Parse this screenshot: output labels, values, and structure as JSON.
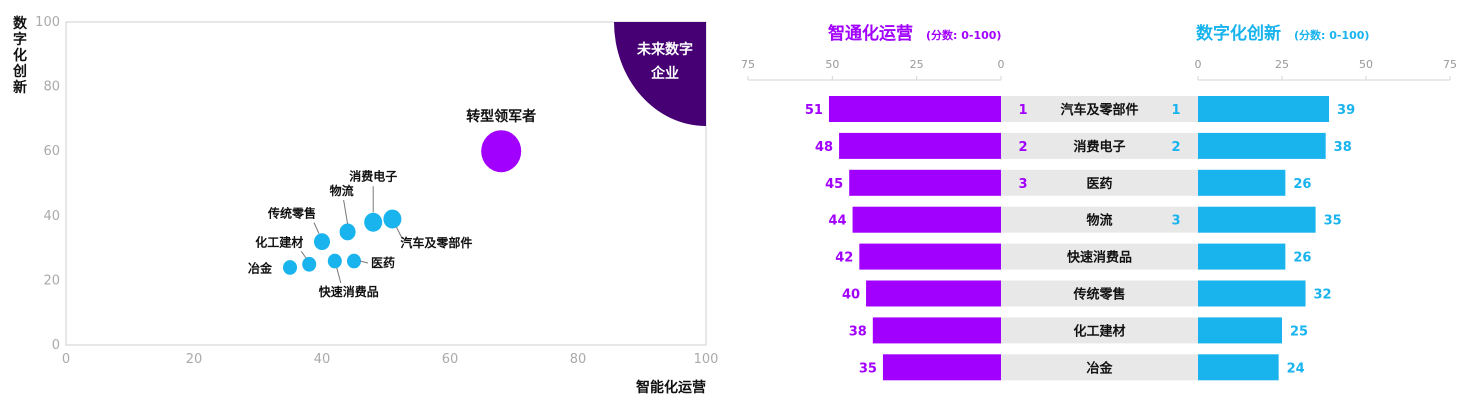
{
  "colors": {
    "purple": "#a100ff",
    "dark_purple": "#460073",
    "cyan": "#19b3ee",
    "band": "#e8e8e8"
  },
  "chart_data": [
    {
      "type": "scatter",
      "xlabel": "智能化运营",
      "ylabel": "数字化创新",
      "xlim": [
        0,
        100
      ],
      "ylim": [
        0,
        100
      ],
      "xticks": [
        0,
        20,
        40,
        60,
        80,
        100
      ],
      "yticks": [
        0,
        20,
        40,
        60,
        80,
        100
      ],
      "corner_label": [
        "未来数字",
        "企业"
      ],
      "points": [
        {
          "label": "转型领军者",
          "x": 68,
          "y": 60,
          "r": 20,
          "color": "#a100ff"
        },
        {
          "label": "汽车及零部件",
          "x": 51,
          "y": 39,
          "r": 9,
          "color": "#19b3ee"
        },
        {
          "label": "消费电子",
          "x": 48,
          "y": 38,
          "r": 9,
          "color": "#19b3ee"
        },
        {
          "label": "物流",
          "x": 44,
          "y": 35,
          "r": 8,
          "color": "#19b3ee"
        },
        {
          "label": "传统零售",
          "x": 40,
          "y": 32,
          "r": 8,
          "color": "#19b3ee"
        },
        {
          "label": "医药",
          "x": 45,
          "y": 26,
          "r": 7,
          "color": "#19b3ee"
        },
        {
          "label": "快速消费品",
          "x": 42,
          "y": 26,
          "r": 7,
          "color": "#19b3ee"
        },
        {
          "label": "化工建材",
          "x": 38,
          "y": 25,
          "r": 7,
          "color": "#19b3ee"
        },
        {
          "label": "冶金",
          "x": 35,
          "y": 24,
          "r": 7,
          "color": "#19b3ee"
        }
      ]
    },
    {
      "type": "bar",
      "left_title": "智通化运营",
      "left_subtitle": "(分数: 0-100)",
      "right_title": "数字化创新",
      "right_subtitle": "(分数: 0-100)",
      "axis_ticks": [
        75,
        50,
        25,
        0
      ],
      "axis_ticks_right": [
        0,
        25,
        50,
        75
      ],
      "xlim": [
        0,
        75
      ],
      "categories": [
        "汽车及零部件",
        "消费电子",
        "医药",
        "物流",
        "快速消费品",
        "传统零售",
        "化工建材",
        "冶金"
      ],
      "series": [
        {
          "name": "智通化运营",
          "values": [
            51,
            48,
            45,
            44,
            42,
            40,
            38,
            35
          ]
        },
        {
          "name": "数字化创新",
          "values": [
            39,
            38,
            26,
            35,
            26,
            32,
            25,
            24
          ]
        }
      ],
      "left_rank": [
        "1",
        "2",
        "3",
        "",
        "",
        "",
        "",
        ""
      ],
      "right_rank": [
        "1",
        "2",
        "",
        "3",
        "",
        "",
        "",
        ""
      ]
    }
  ]
}
